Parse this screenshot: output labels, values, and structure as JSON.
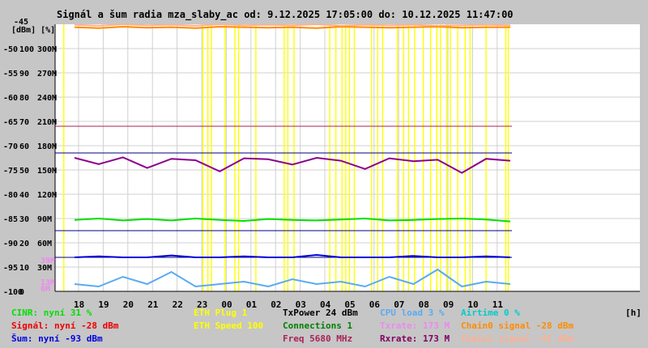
{
  "chart_data": {
    "type": "line",
    "title": "Signál a šum radia mza_slaby_ac od: 9.12.2025 17:05:00 do: 10.12.2025 11:47:00",
    "ylabel": "[dBm] [%]",
    "xlabel": "[h]",
    "x_ticks": [
      "18",
      "19",
      "20",
      "21",
      "22",
      "23",
      "00",
      "01",
      "02",
      "03",
      "04",
      "05",
      "06",
      "07",
      "08",
      "09",
      "10",
      "11"
    ],
    "y_ticks": [
      {
        "dbm": "-50",
        "pct": "100",
        "rate": "300M"
      },
      {
        "dbm": "-55",
        "pct": "90",
        "rate": "270M"
      },
      {
        "dbm": "-60",
        "pct": "80",
        "rate": "240M"
      },
      {
        "dbm": "-65",
        "pct": "70",
        "rate": "210M"
      },
      {
        "dbm": "-70",
        "pct": "60",
        "rate": "180M"
      },
      {
        "dbm": "-75",
        "pct": "50",
        "rate": "150M"
      },
      {
        "dbm": "-80",
        "pct": "40",
        "rate": "120M"
      },
      {
        "dbm": "-85",
        "pct": "30",
        "rate": "90M"
      },
      {
        "dbm": "-90",
        "pct": "20",
        "rate": "60M"
      },
      {
        "dbm": "-95",
        "pct": "10",
        "rate": "30M"
      },
      {
        "dbm": "-100",
        "pct": "0",
        "rate": ""
      }
    ],
    "ylim_dbm": [
      -100,
      -45
    ],
    "top_label": "-45",
    "side_labels": {
      "txrate": "39M",
      "rxrate": "13M",
      "speed": "6M"
    },
    "reference_lines_dbm": [
      -66,
      -71.5,
      -87.5,
      -93
    ],
    "spike_hours": [
      17.4,
      23.05,
      23.25,
      23.4,
      23.95,
      0.35,
      0.5,
      1.2,
      2.35,
      2.5,
      2.75,
      4.2,
      4.45,
      4.7,
      4.85,
      5.0,
      5.2,
      5.9,
      6.15,
      6.35,
      6.95,
      7.2,
      7.4,
      7.65,
      8.0,
      8.3,
      8.55,
      8.7,
      8.95,
      9.1,
      9.4,
      9.7,
      9.9,
      10.55,
      11.35,
      11.45
    ],
    "series": [
      {
        "name": "CINR",
        "color": "#00e000",
        "dbm_values": [
          -85.3,
          -85.0,
          -85.4,
          -85.1,
          -85.4,
          -85.0,
          -85.3,
          -85.5,
          -85.1,
          -85.3,
          -85.4,
          -85.2,
          -85.0,
          -85.4,
          -85.3,
          -85.1,
          -85.0,
          -85.2,
          -85.6
        ]
      },
      {
        "name": "Signál",
        "color": "#8b008b",
        "dbm_values": [
          -72.5,
          -73.8,
          -72.4,
          -74.6,
          -72.7,
          -73.0,
          -75.3,
          -72.6,
          -72.8,
          -73.9,
          -72.5,
          -73.1,
          -74.8,
          -72.6,
          -73.2,
          -72.9,
          -75.6,
          -72.7,
          -73.1
        ]
      },
      {
        "name": "Šum",
        "color": "#0000dd",
        "dbm_values": [
          -93,
          -92.8,
          -93,
          -93,
          -92.6,
          -93,
          -93,
          -92.8,
          -93,
          -93,
          -92.5,
          -93,
          -93,
          -93,
          -92.7,
          -93,
          -93,
          -92.8,
          -93
        ]
      },
      {
        "name": "CPU load",
        "color": "#5aabf0",
        "pct_values": [
          3,
          2,
          6,
          3,
          8,
          2,
          3,
          4,
          2,
          5,
          3,
          4,
          2,
          6,
          3,
          9,
          2,
          4,
          3
        ]
      },
      {
        "name": "Chain0 signal",
        "color": "#ff8c00",
        "dbm_values": [
          -45.6,
          -45.8,
          -45.5,
          -45.7,
          -45.6,
          -45.8,
          -45.5,
          -45.6,
          -45.7,
          -45.6,
          -45.8,
          -45.5,
          -45.6,
          -45.7,
          -45.6,
          -45.5,
          -45.7,
          -45.6,
          -45.6
        ]
      },
      {
        "name": "Chain1 signal",
        "color": "#ffb090",
        "dbm_values": [
          -45.1,
          -45.3,
          -45.0,
          -45.2,
          -45.1,
          -45.3,
          -45.0,
          -45.2,
          -45.1,
          -45.2,
          -45.0,
          -45.3,
          -45.1,
          -45.2,
          -45.1,
          -45.3,
          -45.2,
          -45.1,
          -45.2
        ]
      }
    ]
  },
  "legend": [
    [
      {
        "text": "CINR: nyní 31 %",
        "color": "#00e000"
      },
      {
        "text": "ETH Plug 1",
        "color": "#ffff00"
      },
      {
        "text": "TxPower 24 dBm",
        "color": "#000000"
      },
      {
        "text": "CPU load 3 %",
        "color": "#5aabf0"
      },
      {
        "text": "Airtime 0 %",
        "color": "#00cccc"
      }
    ],
    [
      {
        "text": "Signál: nyní -28 dBm",
        "color": "#ee0000"
      },
      {
        "text": "ETH Speed 100",
        "color": "#ffff00"
      },
      {
        "text": "Connections 1",
        "color": "#008000"
      },
      {
        "text": "Txrate: 173 M",
        "color": "#ee88ee"
      },
      {
        "text": "Chain0 signal -28 dBm",
        "color": "#ff8c00"
      }
    ],
    [
      {
        "text": "Šum: nyní -93 dBm",
        "color": "#0000dd"
      },
      {
        "text": "",
        "color": "#000000"
      },
      {
        "text": "Freq 5680 MHz",
        "color": "#aa2255"
      },
      {
        "text": "Rxrate: 173 M",
        "color": "#800060"
      },
      {
        "text": "Chain1 signal -41 dBm",
        "color": "#ffb090"
      }
    ]
  ]
}
